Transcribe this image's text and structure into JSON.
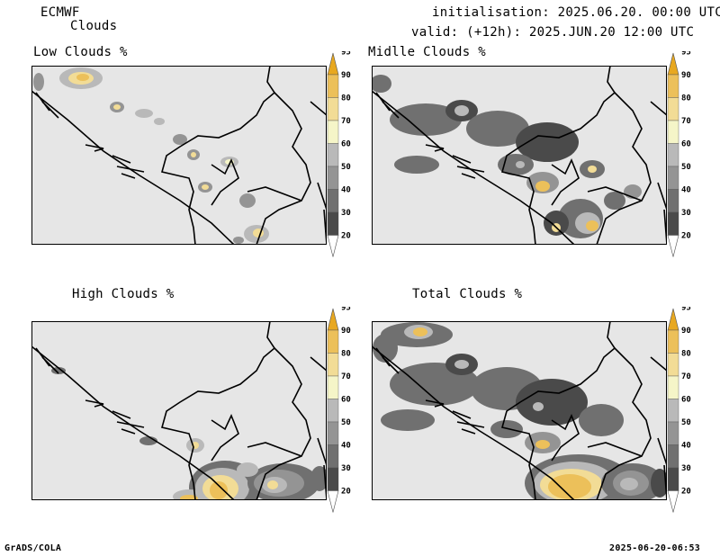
{
  "header": {
    "model": "ECMWF",
    "product": "Clouds",
    "initialisation": "initialisation: 2025.06.20. 00:00 UTC",
    "valid": "valid: (+12h): 2025.JUN.20 12:00 UTC"
  },
  "panels": [
    {
      "id": "low",
      "title": "Low Clouds %"
    },
    {
      "id": "middle",
      "title": "Midlle Clouds %"
    },
    {
      "id": "high",
      "title": "High Clouds %"
    },
    {
      "id": "total",
      "title": "Total Clouds %"
    }
  ],
  "colorbar": {
    "levels": [
      "20",
      "30",
      "40",
      "50",
      "60",
      "70",
      "80",
      "90",
      "95"
    ],
    "colors": [
      "#ffffff",
      "#4a4a4a",
      "#707070",
      "#949494",
      "#b9b9b9",
      "#f5f5c8",
      "#f2dc96",
      "#ecc05a",
      "#e8a820"
    ]
  },
  "footer": {
    "left": "GrADS/COLA",
    "right": "2025-06-20-06:53"
  }
}
